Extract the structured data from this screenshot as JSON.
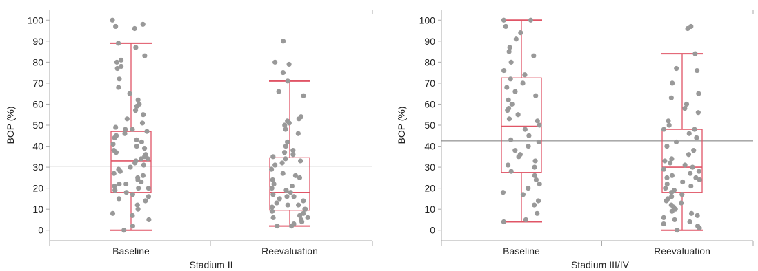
{
  "chart_data": [
    {
      "type": "box-scatter",
      "xlabel": "Stadium II",
      "ylabel": "BOP (%)",
      "ylim": [
        -5,
        105
      ],
      "yticks": [
        0,
        10,
        20,
        30,
        40,
        50,
        60,
        70,
        80,
        90,
        100
      ],
      "categories": [
        "Baseline",
        "Reevaluation"
      ],
      "reference_line": 30.5,
      "grid": false,
      "colors": {
        "box": "#e05566",
        "point": "#999999",
        "reference": "#777777",
        "axis": "#aaaaaa"
      },
      "boxes": [
        {
          "category": "Baseline",
          "whisker_low": 0,
          "q1": 18,
          "median": 33,
          "q3": 47,
          "whisker_high": 89
        },
        {
          "category": "Reevaluation",
          "whisker_low": 2,
          "q1": 9.5,
          "median": 18,
          "q3": 34.5,
          "whisker_high": 71
        }
      ],
      "points": [
        [
          100,
          98,
          97,
          96,
          89,
          87,
          83,
          81,
          80,
          78,
          77,
          72,
          68,
          65,
          62,
          60,
          59,
          57,
          55,
          53,
          51,
          49,
          48,
          48,
          47,
          46,
          45,
          44,
          43,
          42,
          41,
          40,
          39,
          38,
          37,
          36,
          35,
          34,
          34,
          33,
          32,
          31,
          30,
          29,
          28,
          27,
          26,
          25,
          24,
          23,
          22,
          22,
          21,
          20,
          20,
          19,
          18,
          17,
          16,
          15,
          14,
          12,
          10,
          8,
          7,
          5,
          2,
          0
        ],
        [
          90,
          80,
          79,
          75,
          71,
          66,
          64,
          54,
          53,
          52,
          51,
          50,
          48,
          46,
          42,
          40,
          38,
          37,
          36,
          35,
          34,
          33,
          32,
          31,
          29,
          27,
          26,
          25,
          24,
          22,
          21,
          20,
          19,
          18,
          17,
          16,
          16,
          15,
          14,
          13,
          12,
          12,
          11,
          10,
          10,
          9,
          8,
          7,
          6,
          6,
          5,
          4,
          3,
          2,
          2
        ]
      ]
    },
    {
      "type": "box-scatter",
      "xlabel": "Stadium III/IV",
      "ylabel": "BOP (%)",
      "ylim": [
        -5,
        105
      ],
      "yticks": [
        0,
        10,
        20,
        30,
        40,
        50,
        60,
        70,
        80,
        90,
        100
      ],
      "categories": [
        "Baseline",
        "Reevaluation"
      ],
      "reference_line": 42.5,
      "grid": false,
      "colors": {
        "box": "#e05566",
        "point": "#999999",
        "reference": "#777777",
        "axis": "#aaaaaa"
      },
      "boxes": [
        {
          "category": "Baseline",
          "whisker_low": 4,
          "q1": 27.5,
          "median": 49.5,
          "q3": 72.5,
          "whisker_high": 100
        },
        {
          "category": "Reevaluation",
          "whisker_low": 0,
          "q1": 18,
          "median": 30,
          "q3": 48,
          "whisker_high": 84
        }
      ],
      "points": [
        [
          100,
          100,
          97,
          94,
          91,
          87,
          85,
          83,
          80,
          76,
          74,
          72,
          70,
          68,
          66,
          64,
          62,
          60,
          58,
          57,
          55,
          53,
          52,
          50,
          48,
          45,
          43,
          42,
          40,
          38,
          36,
          35,
          33,
          31,
          30,
          28,
          26,
          24,
          22,
          20,
          18,
          17,
          14,
          12,
          8,
          5,
          4
        ],
        [
          97,
          96,
          84,
          77,
          76,
          70,
          65,
          63,
          60,
          58,
          56,
          52,
          50,
          48,
          48,
          46,
          44,
          42,
          40,
          38,
          36,
          34,
          33,
          32,
          31,
          30,
          29,
          28,
          27,
          26,
          25,
          25,
          24,
          23,
          22,
          21,
          20,
          19,
          18,
          17,
          16,
          15,
          14,
          13,
          12,
          11,
          10,
          9,
          8,
          7,
          6,
          5,
          4,
          3,
          2,
          1,
          0
        ]
      ]
    }
  ]
}
